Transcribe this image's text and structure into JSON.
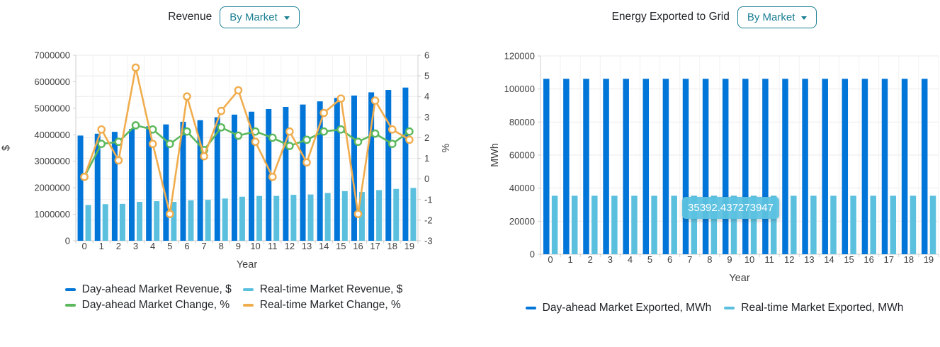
{
  "colors": {
    "day_ahead_bar": "#0275d8",
    "real_time_bar": "#5bc0de",
    "day_ahead_line": "#5cb85c",
    "real_time_line": "#f0ad4e",
    "dropdown_teal": "#1b7f93",
    "tooltip_bg": "#5dc2e0",
    "grid_line": "#ebebeb",
    "axis_line": "#cfcfcf",
    "tick_text": "#404040"
  },
  "chart_data": [
    {
      "id": "revenue",
      "type": "bar+line",
      "title": "Revenue",
      "dropdown_label": "By Market",
      "xlabel": "Year",
      "ylabel_left": "$",
      "ylabel_right": "%",
      "ylim_left": [
        0,
        7000000
      ],
      "yticks_left": [
        0,
        1000000,
        2000000,
        3000000,
        4000000,
        5000000,
        6000000,
        7000000
      ],
      "ylim_right": [
        -3,
        6
      ],
      "yticks_right": [
        -3,
        -2,
        -1,
        0,
        1,
        2,
        3,
        4,
        5,
        6
      ],
      "categories": [
        0,
        1,
        2,
        3,
        4,
        5,
        6,
        7,
        8,
        9,
        10,
        11,
        12,
        13,
        14,
        15,
        16,
        17,
        18,
        19
      ],
      "grid": true,
      "legend_position": "bottom",
      "series": [
        {
          "name": "Day-ahead Market Revenue, $",
          "type": "bar",
          "axis": "left",
          "color": "#0275d8",
          "values": [
            3970000,
            4040000,
            4110000,
            4220000,
            4320000,
            4390000,
            4490000,
            4550000,
            4660000,
            4760000,
            4870000,
            4970000,
            5050000,
            5140000,
            5260000,
            5390000,
            5480000,
            5600000,
            5690000,
            5780000
          ]
        },
        {
          "name": "Real-time Market Revenue, $",
          "type": "bar",
          "axis": "left",
          "color": "#5bc0de",
          "values": [
            1350000,
            1382000,
            1394000,
            1469000,
            1494000,
            1469000,
            1527000,
            1544000,
            1595000,
            1663000,
            1692000,
            1694000,
            1733000,
            1747000,
            1802000,
            1873000,
            1842000,
            1912000,
            1957000,
            1995000
          ]
        },
        {
          "name": "Day-ahead Market Change, %",
          "type": "line",
          "axis": "right",
          "color": "#5cb85c",
          "values": [
            0.1,
            1.7,
            1.8,
            2.6,
            2.4,
            1.7,
            2.3,
            1.4,
            2.5,
            2.1,
            2.3,
            2.0,
            1.6,
            1.9,
            2.3,
            2.4,
            1.8,
            2.2,
            1.7,
            2.3
          ]
        },
        {
          "name": "Real-time Market Change, %",
          "type": "line",
          "axis": "right",
          "color": "#f0ad4e",
          "values": [
            0.1,
            2.4,
            0.9,
            5.4,
            1.7,
            -1.7,
            4.0,
            1.1,
            3.3,
            4.3,
            1.8,
            0.1,
            2.3,
            0.8,
            3.2,
            3.9,
            -1.7,
            3.8,
            2.4,
            1.9
          ]
        }
      ]
    },
    {
      "id": "energy_exported",
      "type": "bar",
      "title": "Energy Exported to Grid",
      "dropdown_label": "By Market",
      "xlabel": "Year",
      "ylabel": "MWh",
      "ylim": [
        0,
        120000
      ],
      "yticks": [
        0,
        20000,
        40000,
        60000,
        80000,
        100000,
        120000
      ],
      "categories": [
        0,
        1,
        2,
        3,
        4,
        5,
        6,
        7,
        8,
        9,
        10,
        11,
        12,
        13,
        14,
        15,
        16,
        17,
        18,
        19
      ],
      "grid": true,
      "legend_position": "bottom",
      "series": [
        {
          "name": "Day-ahead Market Exported, MWh",
          "type": "bar",
          "color": "#0275d8",
          "values": [
            106177.31,
            106177.31,
            106177.31,
            106177.31,
            106177.31,
            106177.31,
            106177.31,
            106177.31,
            106177.31,
            106177.31,
            106177.31,
            106177.31,
            106177.31,
            106177.31,
            106177.31,
            106177.31,
            106177.31,
            106177.31,
            106177.31,
            106177.31
          ]
        },
        {
          "name": "Real-time Market Exported, MWh",
          "type": "bar",
          "color": "#5bc0de",
          "values": [
            35392.437273947,
            35392.437273947,
            35392.437273947,
            35392.437273947,
            35392.437273947,
            35392.437273947,
            35392.437273947,
            35392.437273947,
            35392.437273947,
            35392.437273947,
            35392.437273947,
            35392.437273947,
            35392.437273947,
            35392.437273947,
            35392.437273947,
            35392.437273947,
            35392.437273947,
            35392.437273947,
            35392.437273947,
            35392.437273947
          ]
        }
      ],
      "tooltip": {
        "text": "35392.437273947"
      }
    }
  ]
}
